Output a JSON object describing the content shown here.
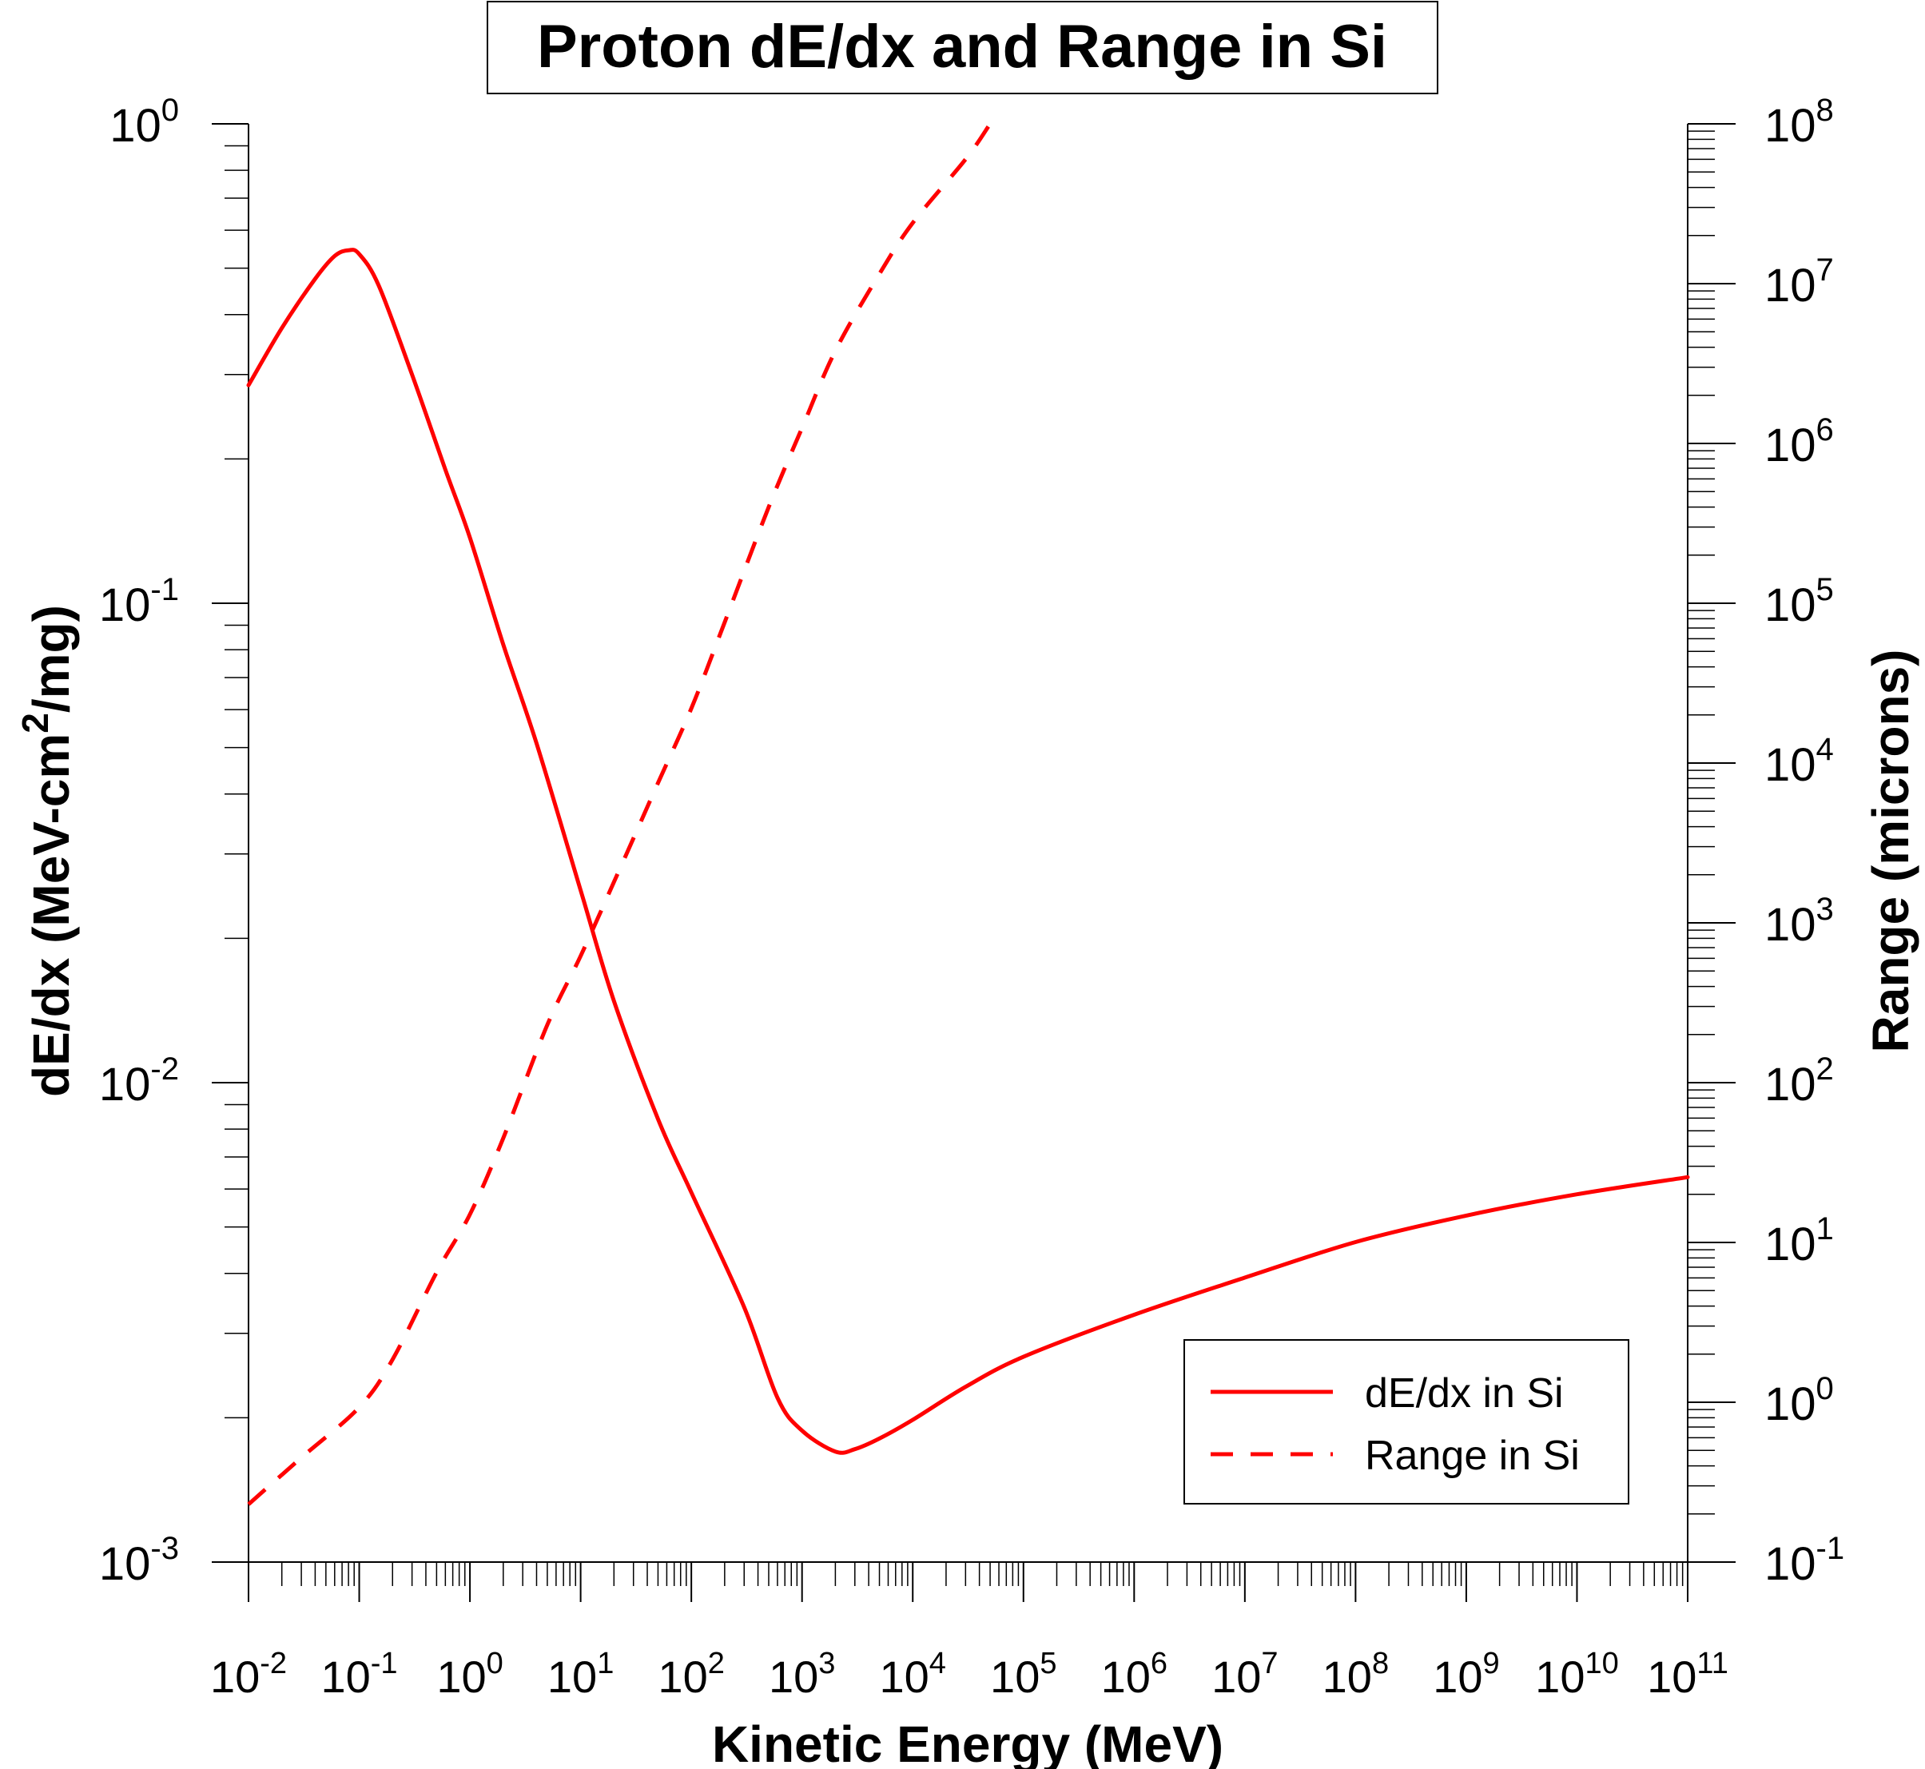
{
  "chart_data": {
    "type": "line",
    "title": "Proton dE/dx and Range in Si",
    "xlabel": "Kinetic Energy (MeV)",
    "ylabel_left": "dE/dx (MeV-cm",
    "ylabel_left_sup": "2",
    "ylabel_left_end": "/mg)",
    "ylabel_right": "Range (microns)",
    "x_scale": "log",
    "xlim_exp": [
      -2,
      11
    ],
    "y_left_lim_exp": [
      -3,
      0
    ],
    "y_right_lim_exp": [
      -1,
      8
    ],
    "grid": false,
    "legend_position": "bottom-right",
    "x_tick_exponents": [
      "-2",
      "-1",
      "0",
      "1",
      "2",
      "3",
      "4",
      "5",
      "6",
      "7",
      "8",
      "9",
      "10",
      "11"
    ],
    "y_left_tick_exponents": [
      "-3",
      "-2",
      "-1",
      "0"
    ],
    "y_right_tick_exponents": [
      "-1",
      "0",
      "1",
      "2",
      "3",
      "4",
      "5",
      "6",
      "7",
      "8"
    ],
    "tick_base": "10",
    "series": [
      {
        "name": "dE/dx in Si",
        "axis": "left",
        "style": "solid",
        "color": "#ff0000",
        "x": [
          0.01,
          0.02,
          0.04,
          0.06,
          0.08,
          0.1,
          0.15,
          0.3,
          0.6,
          1,
          2,
          4,
          10,
          20,
          50,
          100,
          300,
          600,
          1000,
          2000,
          3000,
          5000,
          10000,
          30000,
          100000,
          1000000,
          10000000,
          100000000,
          1000000000,
          10000000000,
          100000000000
        ],
        "y": [
          0.285,
          0.375,
          0.475,
          0.53,
          0.545,
          0.535,
          0.46,
          0.3,
          0.19,
          0.137,
          0.082,
          0.051,
          0.0252,
          0.0148,
          0.0084,
          0.0059,
          0.0034,
          0.0022,
          0.00188,
          0.0017,
          0.00172,
          0.00181,
          0.00198,
          0.00232,
          0.00268,
          0.00328,
          0.00392,
          0.00465,
          0.00528,
          0.00585,
          0.00635
        ]
      },
      {
        "name": "Range in Si",
        "axis": "right",
        "style": "dashed",
        "color": "#ff0000",
        "x": [
          0.01,
          0.03,
          0.1,
          0.2,
          0.5,
          1,
          2,
          5,
          10,
          20,
          50,
          100,
          200,
          500,
          1000,
          2000,
          5000,
          10000,
          30000,
          50000
        ],
        "y": [
          0.23,
          0.45,
          0.93,
          1.85,
          6.5,
          15,
          45,
          230,
          620,
          1800,
          7500,
          22000,
          76000,
          400000,
          1250000,
          3800000,
          11500000,
          24000000,
          60000000,
          100000000
        ]
      }
    ]
  }
}
